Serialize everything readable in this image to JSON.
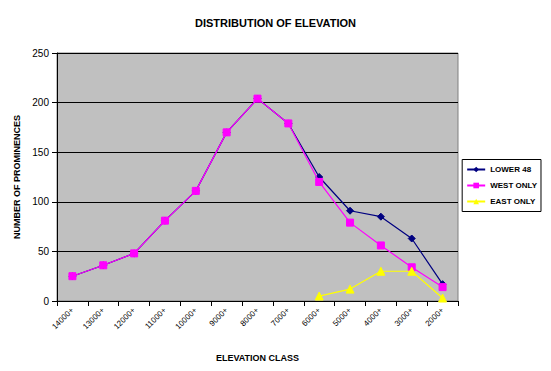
{
  "chart_data": {
    "type": "line",
    "title": "DISTRIBUTION OF ELEVATION",
    "xlabel": "ELEVATION CLASS",
    "ylabel": "NUMBER OF PROMINENCES",
    "categories": [
      "14000+",
      "13000+",
      "12000+",
      "11000+",
      "10000+",
      "9000+",
      "8000+",
      "7000+",
      "6000+",
      "5000+",
      "4000+",
      "3000+",
      "2000+"
    ],
    "series": [
      {
        "name": "LOWER 48",
        "color": "#000080",
        "marker": "diamond",
        "values": [
          25,
          36,
          48,
          81,
          111,
          170,
          204,
          179,
          125,
          91,
          85,
          63,
          17
        ]
      },
      {
        "name": "WEST ONLY",
        "color": "#ff00ff",
        "marker": "square",
        "values": [
          25,
          36,
          48,
          81,
          111,
          170,
          204,
          179,
          120,
          79,
          56,
          34,
          14
        ]
      },
      {
        "name": "EAST ONLY",
        "color": "#ffff00",
        "marker": "triangle",
        "values": [
          null,
          null,
          null,
          null,
          null,
          null,
          null,
          null,
          5,
          12,
          30,
          30,
          3
        ]
      }
    ],
    "ylim": [
      0,
      250
    ],
    "yticks": [
      0,
      50,
      100,
      150,
      200,
      250
    ],
    "grid": true,
    "legend": "right"
  }
}
